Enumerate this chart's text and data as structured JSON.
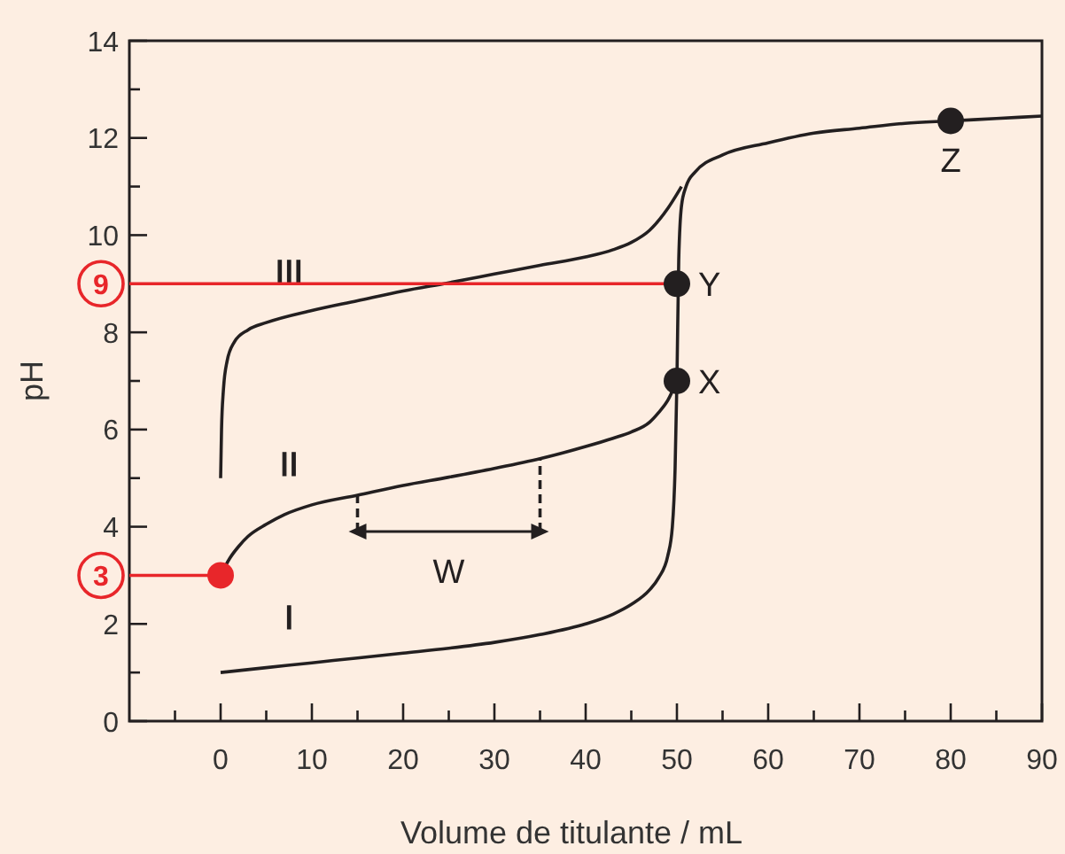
{
  "chart_data": {
    "type": "line",
    "xlabel": "Volume de titulante / mL",
    "ylabel": "pH",
    "xlim": [
      -10,
      90
    ],
    "xticks": [
      {
        "value": -5,
        "label": null
      },
      0,
      {
        "value": 5,
        "label": null
      },
      10,
      {
        "value": 15,
        "label": null
      },
      20,
      {
        "value": 25,
        "label": null
      },
      30,
      {
        "value": 35,
        "label": null
      },
      40,
      {
        "value": 45,
        "label": null
      },
      50,
      {
        "value": 55,
        "label": null
      },
      60,
      {
        "value": 65,
        "label": null
      },
      70,
      {
        "value": 75,
        "label": null
      },
      80,
      {
        "value": 85,
        "label": null
      },
      90
    ],
    "ylim": [
      0,
      14
    ],
    "yticks": [
      0,
      {
        "value": 1,
        "label": null
      },
      2,
      {
        "value": 3,
        "label": null
      },
      4,
      {
        "value": 5,
        "label": null
      },
      6,
      {
        "value": 7,
        "label": null
      },
      8,
      {
        "value": 9,
        "label": null
      },
      10,
      {
        "value": 11,
        "label": null
      },
      12,
      {
        "value": 13,
        "label": null
      },
      14
    ],
    "grid": false,
    "line_style": "solid",
    "series": [
      {
        "name": "I",
        "color": "#231f20",
        "x": [
          0,
          5,
          10,
          15,
          20,
          25,
          30,
          35,
          40,
          43,
          45,
          47,
          48,
          49,
          49.5,
          49.8,
          50,
          50.2,
          50.5,
          51,
          52,
          55,
          60,
          65,
          70,
          75,
          80,
          85,
          90
        ],
        "values": [
          1,
          1.1,
          1.2,
          1.3,
          1.4,
          1.5,
          1.62,
          1.78,
          2.0,
          2.2,
          2.4,
          2.7,
          2.95,
          3.4,
          4.0,
          5.2,
          7,
          9.5,
          10.6,
          11.0,
          11.3,
          11.65,
          11.9,
          12.1,
          12.2,
          12.3,
          12.35,
          12.4,
          12.45
        ]
      },
      {
        "name": "II",
        "color": "#231f20",
        "x": [
          0,
          1,
          2,
          3,
          5,
          7,
          10,
          15,
          20,
          25,
          30,
          35,
          40,
          43,
          45,
          47,
          48,
          49,
          50
        ],
        "values": [
          3,
          3.35,
          3.6,
          3.8,
          4.05,
          4.25,
          4.45,
          4.65,
          4.85,
          5.02,
          5.2,
          5.4,
          5.65,
          5.82,
          5.95,
          6.15,
          6.35,
          6.6,
          7
        ]
      },
      {
        "name": "III",
        "color": "#231f20",
        "x": [
          0,
          0.1,
          0.3,
          0.7,
          1.5,
          3,
          5,
          10,
          15,
          20,
          25,
          30,
          35,
          40,
          43,
          45,
          47,
          49,
          50.5
        ],
        "values": [
          5,
          6.0,
          6.8,
          7.4,
          7.8,
          8.05,
          8.2,
          8.45,
          8.65,
          8.85,
          9.02,
          9.2,
          9.38,
          9.55,
          9.7,
          9.85,
          10.1,
          10.55,
          11.0
        ]
      },
      {
        "color": "#231f20",
        "x": [
          15,
          15
        ],
        "values": [
          3.9,
          4.65
        ],
        "line_style": "dashed"
      },
      {
        "color": "#231f20",
        "x": [
          35,
          35
        ],
        "values": [
          3.9,
          5.4
        ],
        "line_style": "dashed"
      },
      {
        "color": "#231f20",
        "x": [
          15,
          35
        ],
        "values": [
          3.9,
          3.9
        ]
      },
      {
        "color": "#e8262a",
        "x": [
          -10,
          50
        ],
        "values": [
          9,
          9
        ]
      },
      {
        "color": "#e8262a",
        "x": [
          -10,
          0
        ],
        "values": [
          3,
          3
        ]
      },
      {
        "type": "scatter",
        "color": "#231f20",
        "x": [
          50,
          50,
          80
        ],
        "values": [
          7,
          9,
          12.35
        ],
        "marker": "circle"
      },
      {
        "type": "scatter",
        "color": "#e8262a",
        "x": [
          0
        ],
        "values": [
          3
        ],
        "marker": "circle"
      }
    ],
    "annotations": [
      {
        "text": "W",
        "x": 25,
        "y": 3.9
      },
      {
        "text": "X",
        "x": 50,
        "y": 7
      },
      {
        "text": "Y",
        "x": 50,
        "y": 9
      },
      {
        "text": "Z",
        "x": 80,
        "y": 12.35
      },
      {
        "text": "9",
        "x": -10,
        "y": 9
      },
      {
        "text": "3",
        "x": -10,
        "y": 3
      }
    ]
  }
}
